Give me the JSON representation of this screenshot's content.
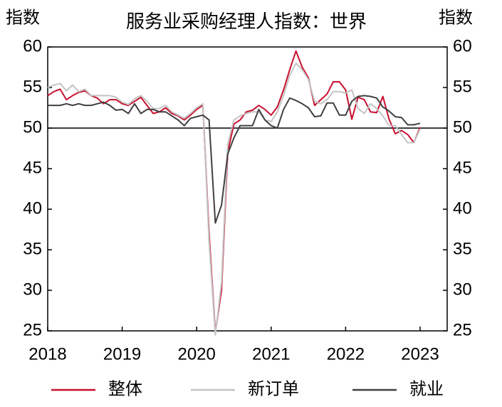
{
  "chart_data": {
    "type": "line",
    "title": "服务业采购经理人指数：世界",
    "y_label": "指数",
    "y2_label": "指数",
    "categories": [
      "2018",
      null,
      null,
      null,
      null,
      null,
      null,
      null,
      null,
      null,
      null,
      null,
      "2019",
      null,
      null,
      null,
      null,
      null,
      null,
      null,
      null,
      null,
      null,
      null,
      "2020",
      null,
      null,
      null,
      null,
      null,
      null,
      null,
      null,
      null,
      null,
      null,
      "2021",
      null,
      null,
      null,
      null,
      null,
      null,
      null,
      null,
      null,
      null,
      null,
      "2022",
      null,
      null,
      null,
      null,
      null,
      null,
      null,
      null,
      null,
      null,
      null,
      "2023"
    ],
    "series": [
      {
        "name": "整体",
        "color": "#c8102e",
        "values": [
          54.0,
          54.5,
          54.8,
          53.5,
          54.0,
          54.4,
          54.6,
          54.0,
          53.7,
          53.0,
          53.5,
          53.5,
          53.0,
          52.8,
          53.3,
          53.8,
          52.8,
          51.8,
          52.0,
          52.5,
          51.8,
          51.5,
          51.0,
          51.6,
          52.3,
          52.8,
          37.0,
          24.8,
          30.0,
          47.0,
          50.5,
          51.0,
          52.0,
          52.2,
          52.8,
          52.3,
          51.6,
          52.6,
          54.7,
          57.2,
          59.5,
          57.5,
          56.2,
          52.8,
          53.5,
          54.2,
          55.7,
          55.7,
          54.7,
          51.1,
          53.8,
          53.5,
          52.0,
          51.9,
          53.9,
          51.1,
          49.3,
          49.7,
          49.2,
          48.2,
          50.1
        ]
      },
      {
        "name": "新订单",
        "color": "#c4c4c4",
        "values": [
          55.0,
          55.3,
          55.5,
          54.6,
          55.3,
          54.5,
          54.8,
          54.0,
          54.0,
          54.0,
          54.0,
          53.8,
          53.2,
          52.9,
          53.6,
          54.0,
          53.3,
          52.4,
          52.4,
          52.8,
          52.0,
          51.6,
          51.2,
          51.8,
          52.5,
          53.0,
          36.0,
          24.5,
          31.0,
          48.0,
          51.0,
          51.5,
          51.8,
          52.0,
          52.0,
          51.0,
          50.8,
          52.0,
          54.0,
          56.5,
          58.0,
          57.2,
          56.0,
          53.3,
          53.0,
          53.5,
          54.5,
          54.5,
          54.3,
          54.7,
          52.4,
          51.8,
          53.0,
          52.4,
          51.5,
          50.3,
          50.3,
          49.2,
          48.2,
          48.2,
          49.9
        ]
      },
      {
        "name": "就业",
        "color": "#404040",
        "values": [
          52.8,
          52.8,
          52.8,
          53.0,
          52.8,
          53.0,
          52.8,
          52.8,
          53.0,
          53.2,
          52.8,
          52.2,
          52.3,
          51.8,
          53.0,
          51.8,
          52.3,
          52.3,
          52.0,
          52.0,
          51.5,
          51.0,
          50.3,
          51.2,
          51.4,
          51.6,
          51.0,
          38.3,
          40.5,
          46.8,
          48.8,
          50.3,
          50.3,
          50.3,
          52.3,
          51.0,
          50.3,
          50.0,
          52.3,
          53.7,
          53.4,
          53.0,
          52.5,
          51.4,
          51.5,
          53.1,
          53.1,
          51.6,
          51.6,
          53.3,
          53.9,
          54.0,
          53.9,
          53.7,
          52.6,
          52.1,
          51.4,
          51.3,
          50.4,
          50.4,
          50.6
        ]
      }
    ],
    "reference_line": 50,
    "ylim": [
      25,
      60
    ],
    "yticks": [
      25,
      30,
      35,
      40,
      45,
      50,
      55,
      60
    ],
    "y2lim": [
      25,
      60
    ],
    "y2ticks": [
      25,
      30,
      35,
      40,
      45,
      50,
      55,
      60
    ],
    "legend": "bottom"
  }
}
